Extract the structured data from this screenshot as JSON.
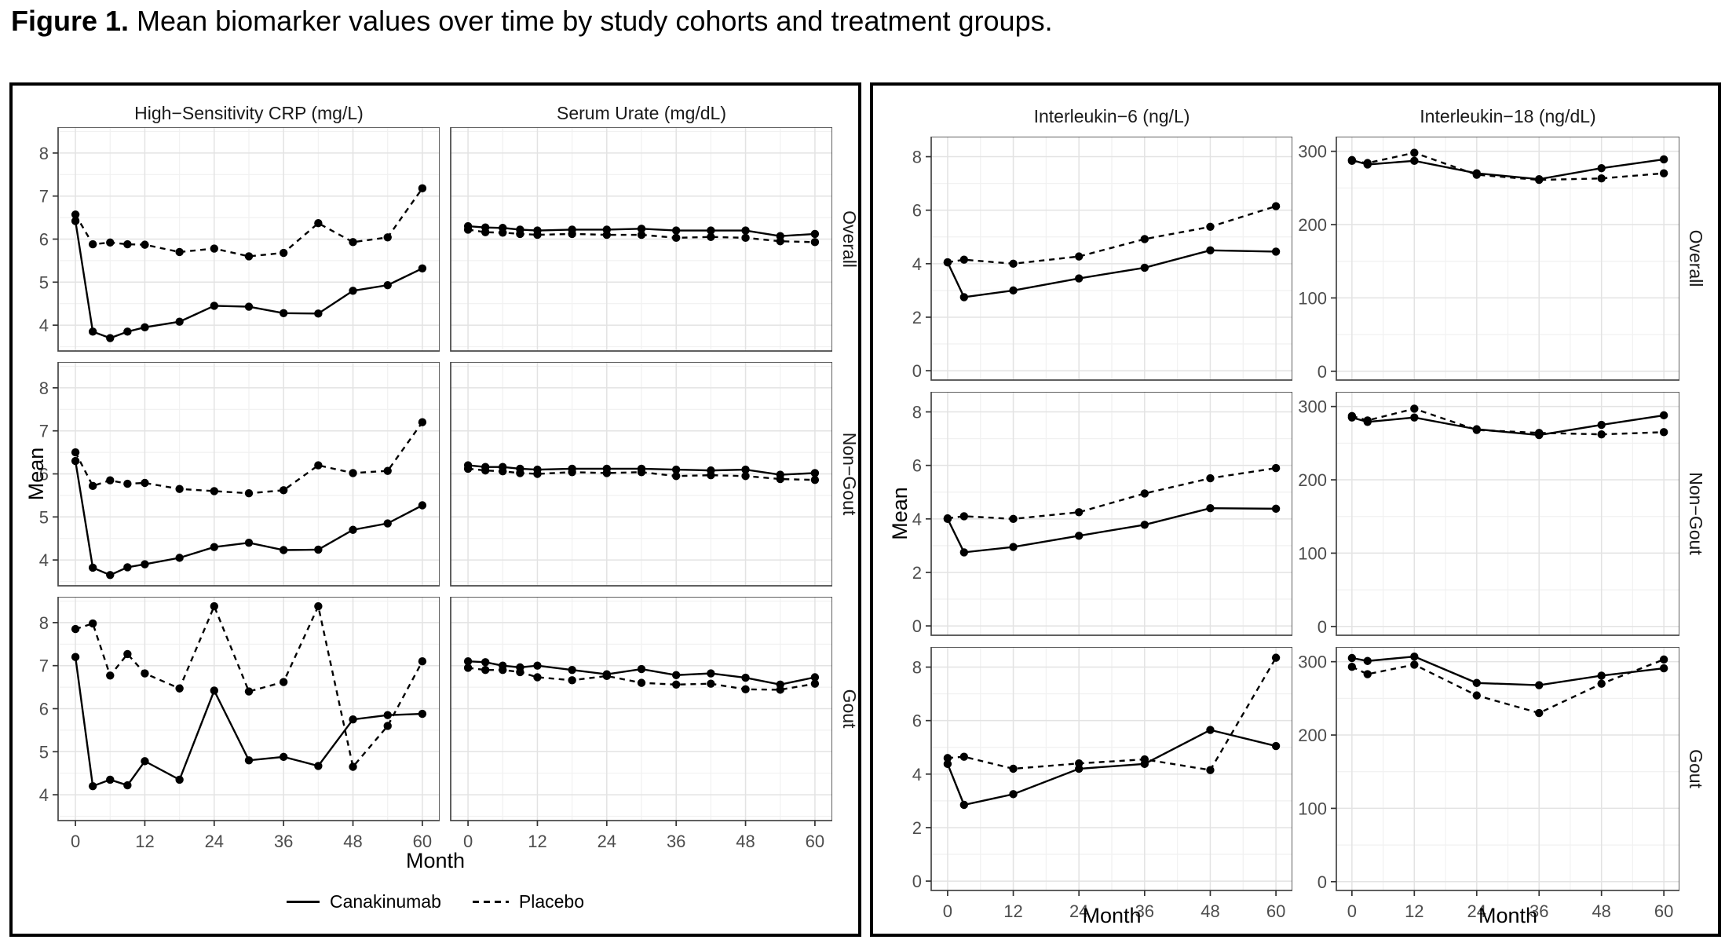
{
  "title": {
    "prefix": "Figure 1.",
    "rest": " Mean biomarker values over time by study cohorts and treatment groups."
  },
  "legend": {
    "items": [
      {
        "label": "Canakinumab",
        "style": "solid"
      },
      {
        "label": "Placebo",
        "style": "dashed"
      }
    ]
  },
  "chart_data": {
    "type": "line",
    "x_label": "Month",
    "y_label": "Mean",
    "x_ticks": [
      0,
      12,
      24,
      36,
      48,
      60
    ],
    "x_minor": [
      6,
      18,
      30,
      42,
      54
    ],
    "xlim": [
      -3,
      63
    ],
    "facet_rows": [
      "Overall",
      "Non−Gout",
      "Gout"
    ],
    "blocks": [
      {
        "columns": [
          "High−Sensitivity CRP (mg/L)",
          "Serum Urate (mg/dL)"
        ],
        "x_points": [
          0,
          3,
          6,
          9,
          12,
          18,
          24,
          30,
          36,
          42,
          48,
          54,
          60
        ]
      },
      {
        "columns": [
          "Interleukin−6 (ng/L)",
          "Interleukin−18 (ng/dL)"
        ],
        "x_points": [
          0,
          3,
          12,
          24,
          36,
          48,
          60
        ]
      }
    ],
    "y_axes": {
      "crp_urate": {
        "ylim": [
          3.4,
          8.6
        ],
        "ticks": [
          4,
          5,
          6,
          7,
          8
        ],
        "minor": [
          3.5,
          4.5,
          5.5,
          6.5,
          7.5,
          8.5
        ]
      },
      "il6": {
        "ylim": [
          -0.35,
          8.75
        ],
        "ticks": [
          0,
          2,
          4,
          6,
          8
        ],
        "minor": [
          1,
          3,
          5,
          7
        ]
      },
      "il18": {
        "ylim": [
          -12,
          320
        ],
        "ticks": [
          0,
          100,
          200,
          300
        ],
        "minor": [
          50,
          150,
          250
        ]
      }
    },
    "panels": [
      {
        "id": "crp-overall",
        "block": 0,
        "col": 0,
        "row": 0,
        "y_axis": "crp_urate",
        "facet": "Overall",
        "series": [
          {
            "name": "Canakinumab",
            "style": "solid",
            "values": [
              6.42,
              3.85,
              3.7,
              3.85,
              3.95,
              4.08,
              4.45,
              4.43,
              4.28,
              4.27,
              4.8,
              4.93,
              5.32
            ]
          },
          {
            "name": "Placebo",
            "style": "dashed",
            "values": [
              6.57,
              5.88,
              5.92,
              5.88,
              5.87,
              5.7,
              5.78,
              5.6,
              5.68,
              6.37,
              5.93,
              6.04,
              7.18
            ]
          }
        ]
      },
      {
        "id": "urate-overall",
        "block": 0,
        "col": 1,
        "row": 0,
        "y_axis": "crp_urate",
        "facet": "Overall",
        "series": [
          {
            "name": "Canakinumab",
            "style": "solid",
            "values": [
              6.3,
              6.27,
              6.26,
              6.22,
              6.2,
              6.22,
              6.22,
              6.24,
              6.2,
              6.2,
              6.2,
              6.07,
              6.12
            ]
          },
          {
            "name": "Placebo",
            "style": "dashed",
            "values": [
              6.22,
              6.16,
              6.15,
              6.12,
              6.1,
              6.12,
              6.1,
              6.1,
              6.03,
              6.05,
              6.03,
              5.95,
              5.93
            ]
          }
        ]
      },
      {
        "id": "crp-nongout",
        "block": 0,
        "col": 0,
        "row": 1,
        "y_axis": "crp_urate",
        "facet": "Non−Gout",
        "series": [
          {
            "name": "Canakinumab",
            "style": "solid",
            "values": [
              6.3,
              3.82,
              3.65,
              3.83,
              3.9,
              4.05,
              4.3,
              4.4,
              4.23,
              4.24,
              4.7,
              4.85,
              5.27
            ]
          },
          {
            "name": "Placebo",
            "style": "dashed",
            "values": [
              6.5,
              5.72,
              5.85,
              5.77,
              5.79,
              5.65,
              5.6,
              5.55,
              5.62,
              6.2,
              6.02,
              6.07,
              7.2
            ]
          }
        ]
      },
      {
        "id": "urate-nongout",
        "block": 0,
        "col": 1,
        "row": 1,
        "y_axis": "crp_urate",
        "facet": "Non−Gout",
        "series": [
          {
            "name": "Canakinumab",
            "style": "solid",
            "values": [
              6.2,
              6.16,
              6.16,
              6.12,
              6.1,
              6.12,
              6.12,
              6.12,
              6.1,
              6.08,
              6.1,
              5.98,
              6.02
            ]
          },
          {
            "name": "Placebo",
            "style": "dashed",
            "values": [
              6.12,
              6.08,
              6.06,
              6.02,
              6.0,
              6.04,
              6.02,
              6.04,
              5.95,
              5.97,
              5.95,
              5.88,
              5.86
            ]
          }
        ]
      },
      {
        "id": "crp-gout",
        "block": 0,
        "col": 0,
        "row": 2,
        "y_axis": "crp_urate",
        "facet": "Gout",
        "series": [
          {
            "name": "Canakinumab",
            "style": "solid",
            "values": [
              7.2,
              4.2,
              4.35,
              4.22,
              4.78,
              4.35,
              6.42,
              4.8,
              4.88,
              4.67,
              5.75,
              5.85,
              5.88
            ]
          },
          {
            "name": "Placebo",
            "style": "dashed",
            "values": [
              7.85,
              7.98,
              6.77,
              7.27,
              6.82,
              6.47,
              8.38,
              6.4,
              6.62,
              8.38,
              4.65,
              5.6,
              7.1
            ]
          }
        ]
      },
      {
        "id": "urate-gout",
        "block": 0,
        "col": 1,
        "row": 2,
        "y_axis": "crp_urate",
        "facet": "Gout",
        "series": [
          {
            "name": "Canakinumab",
            "style": "solid",
            "values": [
              7.1,
              7.08,
              7.0,
              6.96,
              7.0,
              6.9,
              6.8,
              6.92,
              6.78,
              6.82,
              6.72,
              6.56,
              6.73
            ]
          },
          {
            "name": "Placebo",
            "style": "dashed",
            "values": [
              6.95,
              6.9,
              6.9,
              6.85,
              6.73,
              6.66,
              6.76,
              6.6,
              6.56,
              6.58,
              6.45,
              6.44,
              6.58
            ]
          }
        ]
      },
      {
        "id": "il6-overall",
        "block": 1,
        "col": 0,
        "row": 0,
        "y_axis": "il6",
        "facet": "Overall",
        "series": [
          {
            "name": "Canakinumab",
            "style": "solid",
            "values": [
              4.05,
              2.75,
              3.0,
              3.45,
              3.85,
              4.5,
              4.45
            ]
          },
          {
            "name": "Placebo",
            "style": "dashed",
            "values": [
              4.05,
              4.15,
              4.0,
              4.27,
              4.92,
              5.38,
              6.15
            ]
          }
        ]
      },
      {
        "id": "il18-overall",
        "block": 1,
        "col": 1,
        "row": 0,
        "y_axis": "il18",
        "facet": "Overall",
        "series": [
          {
            "name": "Canakinumab",
            "style": "solid",
            "values": [
              288,
              282,
              287,
              270,
              262,
              277,
              289
            ]
          },
          {
            "name": "Placebo",
            "style": "dashed",
            "values": [
              287,
              284,
              298,
              268,
              261,
              263,
              270
            ]
          }
        ]
      },
      {
        "id": "il6-nongout",
        "block": 1,
        "col": 0,
        "row": 1,
        "y_axis": "il6",
        "facet": "Non−Gout",
        "series": [
          {
            "name": "Canakinumab",
            "style": "solid",
            "values": [
              4.0,
              2.75,
              2.95,
              3.37,
              3.78,
              4.4,
              4.38
            ]
          },
          {
            "name": "Placebo",
            "style": "dashed",
            "values": [
              4.02,
              4.1,
              4.0,
              4.25,
              4.95,
              5.52,
              5.9
            ]
          }
        ]
      },
      {
        "id": "il18-nongout",
        "block": 1,
        "col": 1,
        "row": 1,
        "y_axis": "il18",
        "facet": "Non−Gout",
        "series": [
          {
            "name": "Canakinumab",
            "style": "solid",
            "values": [
              285,
              279,
              285,
              269,
              261,
              275,
              288
            ]
          },
          {
            "name": "Placebo",
            "style": "dashed",
            "values": [
              287,
              281,
              297,
              268,
              264,
              262,
              265
            ]
          }
        ]
      },
      {
        "id": "il6-gout",
        "block": 1,
        "col": 0,
        "row": 2,
        "y_axis": "il6",
        "facet": "Gout",
        "series": [
          {
            "name": "Canakinumab",
            "style": "solid",
            "values": [
              4.38,
              2.85,
              3.25,
              4.2,
              4.38,
              5.65,
              5.05
            ]
          },
          {
            "name": "Placebo",
            "style": "dashed",
            "values": [
              4.6,
              4.65,
              4.2,
              4.4,
              4.55,
              4.15,
              8.35
            ]
          }
        ]
      },
      {
        "id": "il18-gout",
        "block": 1,
        "col": 1,
        "row": 2,
        "y_axis": "il18",
        "facet": "Gout",
        "series": [
          {
            "name": "Canakinumab",
            "style": "solid",
            "values": [
              305,
              301,
              307,
              271,
              268,
              281,
              291
            ]
          },
          {
            "name": "Placebo",
            "style": "dashed",
            "values": [
              293,
              283,
              296,
              254,
              230,
              270,
              303
            ]
          }
        ]
      }
    ]
  }
}
